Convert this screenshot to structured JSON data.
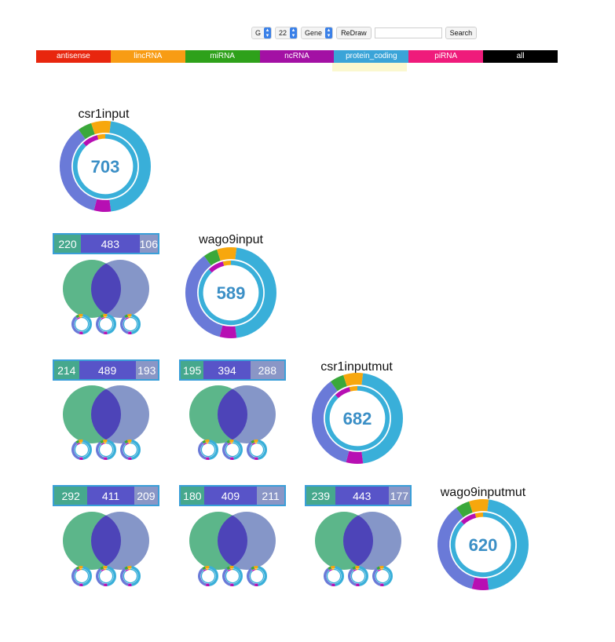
{
  "controls": {
    "letter": "G",
    "number": "22",
    "mode": "Gene",
    "redraw_label": "ReDraw",
    "search_value": "",
    "search_label": "Search"
  },
  "rna_types": [
    {
      "label": "antisense",
      "color": "#e8260e"
    },
    {
      "label": "lincRNA",
      "color": "#f89c14"
    },
    {
      "label": "miRNA",
      "color": "#2ea11a"
    },
    {
      "label": "ncRNA",
      "color": "#a310a4"
    },
    {
      "label": "protein_coding",
      "color": "#3aa4d8"
    },
    {
      "label": "piRNA",
      "color": "#ef1b7b"
    },
    {
      "label": "all",
      "color": "#000000"
    }
  ],
  "selected_type": "protein_coding",
  "colors": {
    "donut_blue": "#39afd9",
    "donut_purple": "#6a7ad8",
    "donut_magenta": "#b70fb3",
    "donut_orange": "#f7a70d",
    "donut_green": "#3aa83a",
    "donut_number": "#3b8fc6",
    "venn_left": "#5cb68a",
    "venn_right": "#8596c8",
    "venn_overlap": "#4d44b8",
    "bar_left": "#46a88d",
    "bar_mid": "#5854c8",
    "bar_right": "#8a96c6"
  },
  "samples": [
    {
      "name": "csr1input",
      "total": "703"
    },
    {
      "name": "wago9input",
      "total": "589"
    },
    {
      "name": "csr1inputmut",
      "total": "682"
    },
    {
      "name": "wago9inputmut",
      "total": "620"
    }
  ],
  "comparisons": [
    {
      "left": "220",
      "mid": "483",
      "right": "106"
    },
    {
      "left": "214",
      "mid": "489",
      "right": "193"
    },
    {
      "left": "195",
      "mid": "394",
      "right": "288"
    },
    {
      "left": "292",
      "mid": "411",
      "right": "209"
    },
    {
      "left": "180",
      "mid": "409",
      "right": "211"
    },
    {
      "left": "239",
      "mid": "443",
      "right": "177"
    }
  ]
}
